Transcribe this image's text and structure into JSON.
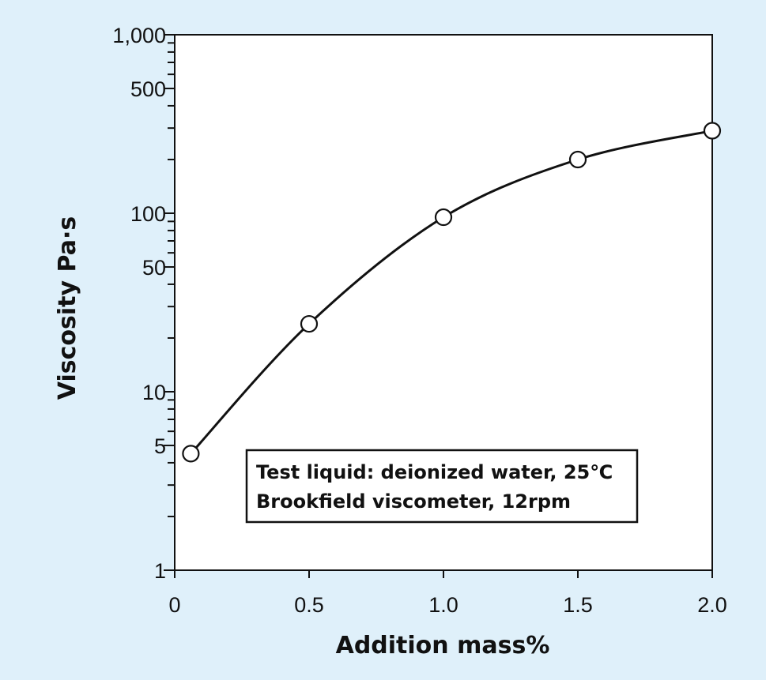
{
  "chart_data": {
    "type": "line",
    "x": [
      0.06,
      0.5,
      1.0,
      1.5,
      2.0
    ],
    "series": [
      {
        "values": [
          4.5,
          24,
          95,
          200,
          290
        ]
      }
    ],
    "xlabel": "Addition  mass%",
    "ylabel": "Viscosity  Pa·s",
    "xlim": [
      0,
      2.0
    ],
    "ylim": [
      1,
      1000
    ],
    "yscale": "log",
    "x_ticks": [
      0,
      0.5,
      1.0,
      1.5,
      2.0
    ],
    "x_tick_labels": [
      "0",
      "0.5",
      "1.0",
      "1.5",
      "2.0"
    ],
    "y_labeled_ticks": [
      1,
      5,
      10,
      50,
      100,
      500,
      1000
    ],
    "y_tick_labels": [
      "1",
      "5",
      "10",
      "50",
      "100",
      "500",
      "1,000"
    ],
    "grid": false,
    "marker": "open-circle",
    "curve": "smooth",
    "annotation": {
      "lines": [
        "Test liquid: deionized water, 25℃",
        "Brookfield viscometer, 12rpm"
      ]
    },
    "colors": {
      "background": "#dff0fa",
      "plot_background": "#ffffff",
      "line": "#111111"
    }
  }
}
